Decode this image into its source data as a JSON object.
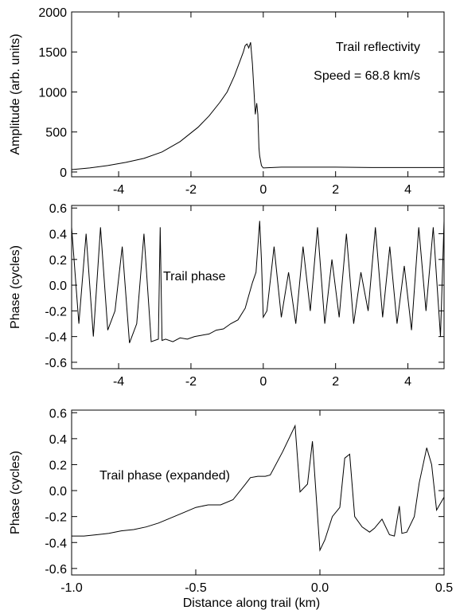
{
  "chart_data": [
    {
      "type": "line",
      "title": "",
      "xlabel": "",
      "ylabel": "Amplitude (arb. units)",
      "xlim": [
        -5.3,
        5.0
      ],
      "ylim": [
        -60,
        2000
      ],
      "xticks": [
        -4,
        -2,
        0,
        2,
        4
      ],
      "xtick_labels": [
        "-4",
        "-2",
        "0",
        "2",
        "4"
      ],
      "yticks": [
        0,
        500,
        1000,
        1500,
        2000
      ],
      "ytick_labels": [
        "0",
        "500",
        "1000",
        "1500",
        "2000"
      ],
      "grid": false,
      "annotations": [
        "Trail reflectivity",
        "Speed = 68.8 km/s"
      ],
      "series": [
        {
          "x": [
            -5.3,
            -4.8,
            -4.3,
            -3.8,
            -3.3,
            -2.8,
            -2.3,
            -1.8,
            -1.5,
            -1.2,
            -1.0,
            -0.8,
            -0.65,
            -0.55,
            -0.5,
            -0.45,
            -0.4,
            -0.35,
            -0.3,
            -0.25,
            -0.22,
            -0.18,
            -0.15,
            -0.12,
            -0.1,
            -0.05,
            0.0,
            0.5,
            1.0,
            2.0,
            3.0,
            4.0,
            5.0
          ],
          "y": [
            30,
            50,
            80,
            120,
            170,
            250,
            380,
            560,
            700,
            870,
            1000,
            1200,
            1380,
            1500,
            1580,
            1600,
            1550,
            1620,
            1350,
            950,
            720,
            860,
            720,
            300,
            200,
            80,
            50,
            60,
            60,
            60,
            55,
            55,
            55
          ]
        }
      ]
    },
    {
      "type": "line",
      "title": "",
      "xlabel": "",
      "ylabel": "Phase (cycles)",
      "xlim": [
        -5.3,
        5.0
      ],
      "ylim": [
        -0.65,
        0.62
      ],
      "xticks": [
        -4,
        -2,
        0,
        2,
        4
      ],
      "xtick_labels": [
        "-4",
        "-2",
        "0",
        "2",
        "4"
      ],
      "yticks": [
        -0.6,
        -0.4,
        -0.2,
        0.0,
        0.2,
        0.4,
        0.6
      ],
      "ytick_labels": [
        "-0.6",
        "-0.4",
        "-0.2",
        "0.0",
        "0.2",
        "0.4",
        "0.6"
      ],
      "grid": false,
      "annotations": [
        "Trail phase"
      ],
      "series": [
        {
          "x": [
            -5.3,
            -5.1,
            -4.9,
            -4.7,
            -4.5,
            -4.3,
            -4.1,
            -3.9,
            -3.7,
            -3.5,
            -3.3,
            -3.1,
            -2.9,
            -2.85,
            -2.8,
            -2.7,
            -2.5,
            -2.3,
            -2.1,
            -1.9,
            -1.7,
            -1.5,
            -1.3,
            -1.1,
            -0.9,
            -0.7,
            -0.5,
            -0.4,
            -0.3,
            -0.2,
            -0.1,
            -0.05,
            0.0,
            0.1,
            0.3,
            0.5,
            0.7,
            0.9,
            1.1,
            1.3,
            1.5,
            1.7,
            1.9,
            2.1,
            2.3,
            2.5,
            2.7,
            2.9,
            3.1,
            3.3,
            3.5,
            3.7,
            3.9,
            4.1,
            4.3,
            4.5,
            4.7,
            4.9,
            5.0
          ],
          "y": [
            0.45,
            -0.3,
            0.4,
            -0.4,
            0.45,
            -0.35,
            -0.2,
            0.3,
            -0.45,
            -0.3,
            0.4,
            -0.44,
            -0.42,
            0.45,
            -0.43,
            -0.42,
            -0.44,
            -0.41,
            -0.42,
            -0.4,
            -0.39,
            -0.38,
            -0.35,
            -0.34,
            -0.3,
            -0.27,
            -0.18,
            -0.08,
            0.02,
            0.1,
            0.5,
            0.2,
            -0.25,
            -0.2,
            0.3,
            -0.25,
            0.1,
            -0.3,
            0.3,
            -0.2,
            0.45,
            -0.3,
            0.2,
            -0.25,
            0.4,
            -0.3,
            0.1,
            -0.2,
            0.45,
            -0.25,
            0.3,
            -0.3,
            0.15,
            -0.35,
            0.45,
            -0.2,
            0.45,
            -0.4,
            0.5
          ]
        }
      ]
    },
    {
      "type": "line",
      "title": "",
      "xlabel": "Distance along trail (km)",
      "ylabel": "Phase (cycles)",
      "xlim": [
        -1.0,
        0.5
      ],
      "ylim": [
        -0.65,
        0.62
      ],
      "xticks": [
        -1.0,
        -0.5,
        0.0,
        0.5
      ],
      "xtick_labels": [
        "-1.0",
        "-0.5",
        "0.0",
        "0.5"
      ],
      "yticks": [
        -0.6,
        -0.4,
        -0.2,
        0.0,
        0.2,
        0.4,
        0.6
      ],
      "ytick_labels": [
        "-0.6",
        "-0.4",
        "-0.2",
        "0.0",
        "0.2",
        "0.4",
        "0.6"
      ],
      "grid": false,
      "annotations": [
        "Trail phase (expanded)"
      ],
      "series": [
        {
          "x": [
            -1.0,
            -0.95,
            -0.9,
            -0.85,
            -0.8,
            -0.75,
            -0.7,
            -0.65,
            -0.6,
            -0.55,
            -0.5,
            -0.45,
            -0.4,
            -0.35,
            -0.3,
            -0.28,
            -0.25,
            -0.22,
            -0.2,
            -0.15,
            -0.1,
            -0.08,
            -0.05,
            -0.03,
            0.0,
            0.02,
            0.05,
            0.08,
            0.1,
            0.12,
            0.14,
            0.17,
            0.2,
            0.22,
            0.25,
            0.28,
            0.3,
            0.32,
            0.33,
            0.35,
            0.38,
            0.4,
            0.43,
            0.45,
            0.47,
            0.5
          ],
          "y": [
            -0.35,
            -0.35,
            -0.34,
            -0.33,
            -0.31,
            -0.3,
            -0.28,
            -0.25,
            -0.21,
            -0.17,
            -0.13,
            -0.11,
            -0.11,
            -0.07,
            0.05,
            0.1,
            0.11,
            0.11,
            0.12,
            0.3,
            0.5,
            -0.01,
            0.05,
            0.38,
            -0.46,
            -0.38,
            -0.2,
            -0.13,
            0.25,
            0.28,
            -0.2,
            -0.28,
            -0.32,
            -0.29,
            -0.22,
            -0.34,
            -0.35,
            -0.12,
            -0.33,
            -0.32,
            -0.2,
            0.06,
            0.33,
            0.2,
            -0.15,
            -0.05
          ]
        }
      ]
    }
  ]
}
